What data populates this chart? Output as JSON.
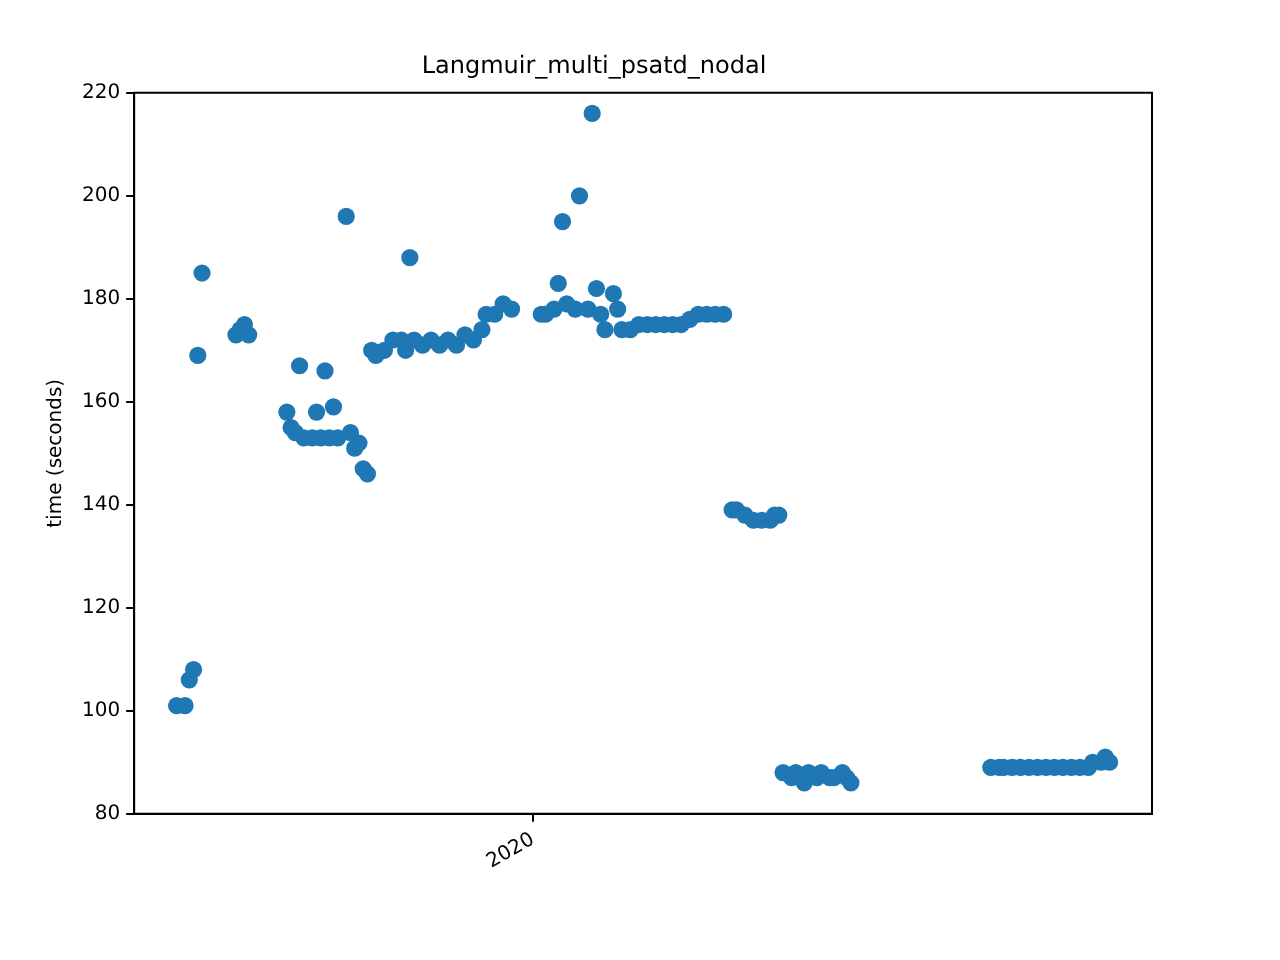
{
  "chart_data": {
    "type": "scatter",
    "title": "Langmuir_multi_psatd_nodal",
    "ylabel": "time (seconds)",
    "categories": [
      null,
      null,
      null,
      null,
      null,
      null,
      null,
      null,
      null,
      null,
      null,
      null,
      null,
      null,
      null,
      null,
      null,
      null,
      null,
      null,
      null,
      null,
      null,
      null,
      null,
      null,
      null,
      null,
      null,
      null,
      null,
      null,
      null,
      null,
      null,
      null,
      null,
      null,
      null,
      null,
      null,
      null,
      null,
      null,
      null,
      null,
      null,
      null,
      null,
      null,
      null,
      null,
      null,
      null,
      null,
      null,
      null,
      null,
      null,
      null,
      null,
      null,
      null,
      null,
      null,
      null,
      null,
      null,
      null,
      null,
      null,
      null,
      null,
      null,
      null,
      null,
      null,
      null,
      null,
      null,
      null,
      null,
      null,
      null,
      null,
      null,
      null,
      null,
      null,
      null,
      null,
      null,
      null,
      null,
      "2020",
      null,
      null,
      null,
      null,
      null,
      null,
      null,
      null,
      null,
      null,
      null,
      null,
      null,
      null,
      null,
      null,
      null,
      null,
      null,
      null,
      null,
      null,
      null,
      null,
      null,
      null,
      null,
      null,
      null,
      null,
      null,
      null,
      null,
      null,
      null,
      null,
      null,
      null,
      null,
      null,
      null,
      null,
      null,
      null,
      null,
      null,
      null,
      null,
      null,
      null,
      null,
      null,
      null,
      null,
      null,
      null,
      null,
      null,
      null,
      null,
      null,
      null,
      null,
      null,
      null,
      null,
      null,
      null,
      null,
      null,
      null,
      null,
      null,
      null,
      null,
      null,
      null,
      null,
      null,
      null,
      null,
      null,
      null,
      null,
      null,
      null,
      null,
      null,
      null,
      null,
      null,
      null,
      null,
      null,
      null,
      null,
      null,
      null,
      null,
      null,
      null,
      null,
      null,
      null,
      null,
      null,
      null,
      null,
      null,
      null,
      null,
      null,
      null,
      null,
      null,
      null,
      null,
      null,
      null,
      null,
      null,
      null,
      null,
      null,
      null,
      null,
      null,
      null,
      null,
      null,
      null,
      null,
      null,
      null,
      null,
      null,
      null,
      null,
      null,
      null,
      null,
      null,
      null,
      null,
      null,
      null
    ],
    "series": [
      {
        "color": "#1f77b4",
        "values": [
          null,
          null,
          null,
          null,
          null,
          null,
          null,
          null,
          null,
          null,
          101,
          null,
          101,
          106,
          108,
          169,
          185,
          null,
          null,
          null,
          null,
          null,
          null,
          null,
          173,
          174,
          175,
          173,
          null,
          null,
          null,
          null,
          null,
          null,
          null,
          null,
          158,
          155,
          154,
          167,
          153,
          null,
          153,
          158,
          153,
          166,
          153,
          159,
          153,
          null,
          196,
          154,
          151,
          152,
          147,
          146,
          170,
          169,
          null,
          170,
          null,
          172,
          null,
          172,
          170,
          188,
          172,
          null,
          171,
          null,
          172,
          null,
          171,
          null,
          172,
          null,
          171,
          null,
          173,
          null,
          172,
          null,
          174,
          177,
          null,
          177,
          null,
          179,
          null,
          178,
          null,
          null,
          null,
          null,
          null,
          null,
          177,
          177,
          null,
          178,
          183,
          195,
          179,
          null,
          178,
          200,
          null,
          178,
          216,
          182,
          177,
          174,
          null,
          181,
          178,
          174,
          null,
          174,
          null,
          175,
          null,
          175,
          null,
          175,
          null,
          175,
          null,
          175,
          null,
          175,
          null,
          176,
          null,
          177,
          null,
          177,
          null,
          177,
          null,
          177,
          null,
          139,
          139,
          null,
          138,
          null,
          137,
          null,
          137,
          null,
          137,
          138,
          138,
          88,
          null,
          87,
          88,
          null,
          86,
          88,
          null,
          87,
          88,
          null,
          87,
          87,
          null,
          88,
          87,
          86,
          null,
          null,
          null,
          null,
          null,
          null,
          null,
          null,
          null,
          null,
          null,
          null,
          null,
          null,
          null,
          null,
          null,
          null,
          null,
          null,
          null,
          null,
          null,
          null,
          null,
          null,
          null,
          null,
          null,
          null,
          null,
          null,
          89,
          null,
          89,
          89,
          null,
          89,
          null,
          89,
          null,
          89,
          null,
          89,
          null,
          89,
          null,
          89,
          null,
          89,
          null,
          89,
          null,
          89,
          null,
          89,
          90,
          null,
          90,
          91,
          90,
          null,
          null,
          null,
          null,
          null,
          null,
          null,
          null,
          null,
          null
        ]
      }
    ],
    "ylim": [
      80,
      220
    ],
    "yticks": [
      80,
      100,
      120,
      140,
      160,
      180,
      200,
      220
    ],
    "grid": false,
    "legend": false,
    "marker": "circle"
  }
}
